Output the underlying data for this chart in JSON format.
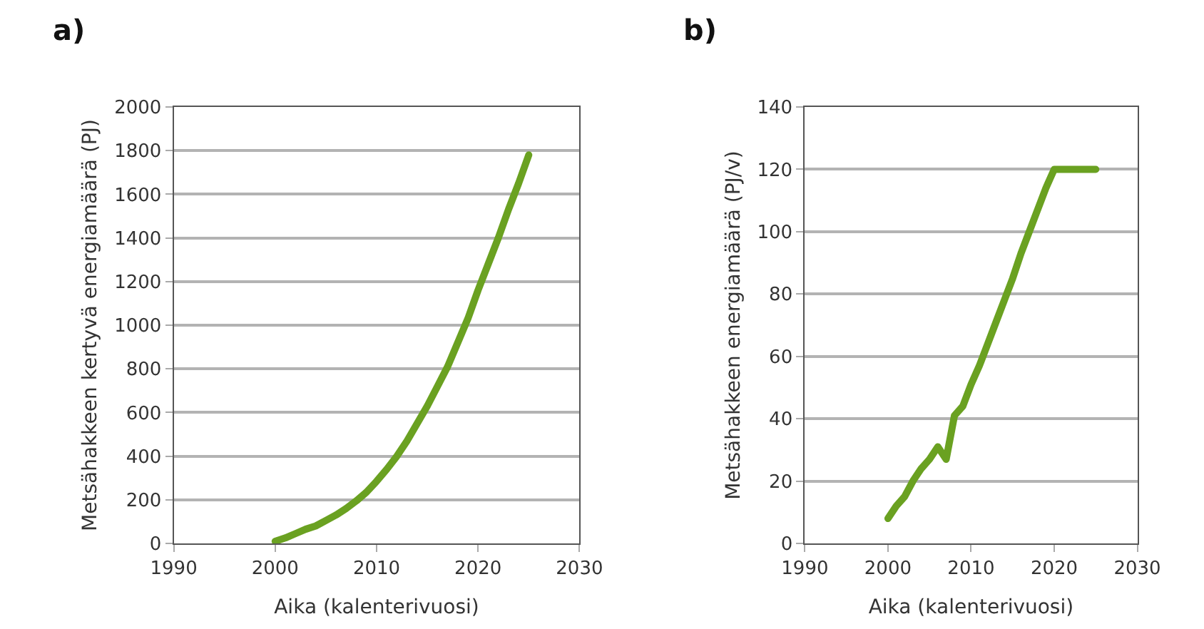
{
  "chart_data": [
    {
      "type": "line",
      "title": "a)",
      "xlabel": "Aika (kalenterivuosi)",
      "ylabel": "Metsähakkeen kertyvä energiamäärä (PJ)",
      "x": [
        2000,
        2001,
        2002,
        2003,
        2004,
        2005,
        2006,
        2007,
        2008,
        2009,
        2010,
        2011,
        2012,
        2013,
        2014,
        2015,
        2016,
        2017,
        2018,
        2019,
        2020,
        2021,
        2022,
        2023,
        2024,
        2025
      ],
      "series": [
        {
          "color": "#6aa121",
          "values": [
            10,
            25,
            45,
            65,
            80,
            105,
            130,
            160,
            195,
            235,
            285,
            340,
            400,
            470,
            550,
            630,
            720,
            810,
            920,
            1030,
            1160,
            1280,
            1400,
            1530,
            1650,
            1780
          ]
        }
      ],
      "xlim": [
        1990,
        2030
      ],
      "xticks": [
        1990,
        2000,
        2010,
        2020,
        2030
      ],
      "ylim": [
        0,
        2000
      ],
      "yticks": [
        0,
        200,
        400,
        600,
        800,
        1000,
        1200,
        1400,
        1600,
        1800,
        2000
      ],
      "grid": "y",
      "marker": "none",
      "line_style": "solid"
    },
    {
      "type": "line",
      "title": "b)",
      "xlabel": "Aika (kalenterivuosi)",
      "ylabel": "Metsähakkeen energiamäärä (PJ/v)",
      "x": [
        2000,
        2001,
        2002,
        2003,
        2004,
        2005,
        2006,
        2007,
        2008,
        2009,
        2010,
        2011,
        2012,
        2013,
        2014,
        2015,
        2016,
        2017,
        2018,
        2019,
        2020,
        2021,
        2022,
        2023,
        2024,
        2025
      ],
      "series": [
        {
          "color": "#6aa121",
          "values": [
            8,
            12,
            15,
            20,
            24,
            27,
            31,
            27,
            41,
            44,
            51,
            57,
            64,
            71,
            78,
            85,
            93,
            100,
            107,
            114,
            120,
            120,
            120,
            120,
            120,
            120
          ]
        }
      ],
      "xlim": [
        1990,
        2030
      ],
      "xticks": [
        1990,
        2000,
        2010,
        2020,
        2030
      ],
      "ylim": [
        0,
        140
      ],
      "yticks": [
        0,
        20,
        40,
        60,
        80,
        100,
        120,
        140
      ],
      "grid": "y",
      "marker": "none",
      "line_style": "solid"
    }
  ]
}
